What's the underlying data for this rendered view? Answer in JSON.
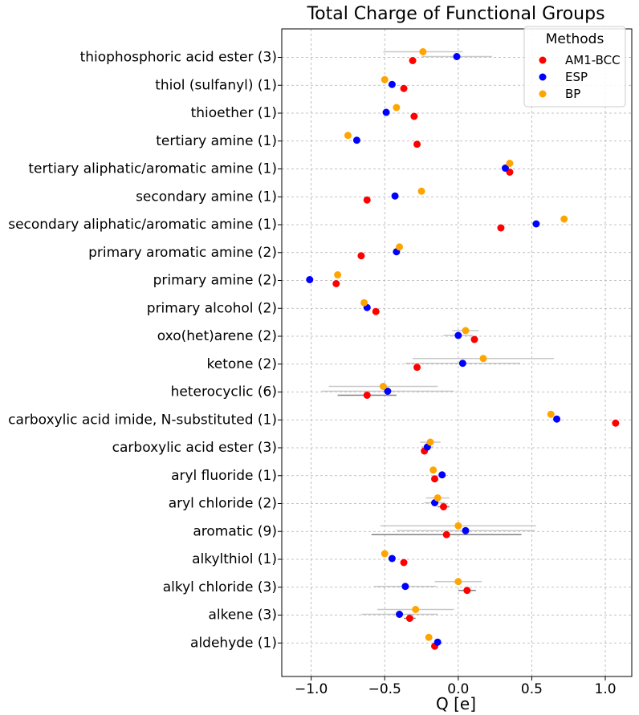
{
  "chart_data": {
    "type": "scatter",
    "title": "Total Charge of Functional Groups",
    "xlabel": "Q [e]",
    "ylabel": "",
    "xlim": [
      -1.2,
      1.18
    ],
    "xticks": [
      -1.0,
      -0.5,
      0.0,
      0.5,
      1.0
    ],
    "xtick_labels": [
      "−1.0",
      "−0.5",
      "0.0",
      "0.5",
      "1.0"
    ],
    "grid": true,
    "legend": {
      "title": "Methods",
      "position": "top-right"
    },
    "categories": [
      "thiophosphoric acid ester (3)",
      "thiol (sulfanyl) (1)",
      "thioether (1)",
      "tertiary amine (1)",
      "tertiary aliphatic/aromatic amine (1)",
      "secondary amine (1)",
      "secondary aliphatic/aromatic amine (1)",
      "primary aromatic amine (2)",
      "primary amine (2)",
      "primary alcohol (2)",
      "oxo(het)arene (2)",
      "ketone (2)",
      "heterocyclic (6)",
      "carboxylic acid imide, N-substituted (1)",
      "carboxylic acid ester (3)",
      "aryl fluoride (1)",
      "aryl chloride (2)",
      "aromatic (9)",
      "alkylthiol (1)",
      "alkyl chloride (3)",
      "alkene (3)",
      "aldehyde (1)"
    ],
    "series": [
      {
        "name": "AM1-BCC",
        "color": "#ff0000",
        "values": [
          -0.31,
          -0.37,
          -0.3,
          -0.28,
          0.35,
          -0.62,
          0.29,
          -0.66,
          -0.83,
          -0.56,
          0.11,
          -0.28,
          -0.62,
          1.07,
          -0.23,
          -0.16,
          -0.1,
          -0.08,
          -0.37,
          0.06,
          -0.33,
          -0.16
        ],
        "err": [
          null,
          null,
          null,
          null,
          null,
          null,
          null,
          null,
          null,
          null,
          null,
          null,
          0.2,
          null,
          null,
          null,
          0.04,
          0.51,
          null,
          0.06,
          0.04,
          null
        ]
      },
      {
        "name": "ESP",
        "color": "#0000ff",
        "values": [
          -0.01,
          -0.45,
          -0.49,
          -0.69,
          0.32,
          -0.43,
          0.53,
          -0.42,
          -1.01,
          -0.62,
          0.0,
          0.03,
          -0.48,
          0.67,
          -0.21,
          -0.11,
          -0.16,
          0.05,
          -0.45,
          -0.36,
          -0.4,
          -0.14
        ],
        "err": [
          0.24,
          null,
          null,
          null,
          null,
          null,
          null,
          null,
          null,
          null,
          0.1,
          0.39,
          0.45,
          null,
          0.04,
          null,
          0.07,
          0.47,
          null,
          0.21,
          0.26,
          null
        ]
      },
      {
        "name": "BP",
        "color": "#ffa500",
        "values": [
          -0.24,
          -0.5,
          -0.42,
          -0.75,
          0.35,
          -0.25,
          0.72,
          -0.4,
          -0.82,
          -0.64,
          0.05,
          0.17,
          -0.51,
          0.63,
          -0.19,
          -0.17,
          -0.14,
          0.0,
          -0.5,
          0.0,
          -0.29,
          -0.2
        ],
        "err": [
          0.27,
          null,
          null,
          null,
          null,
          null,
          null,
          null,
          null,
          null,
          0.09,
          0.48,
          0.37,
          null,
          0.07,
          null,
          0.08,
          0.53,
          null,
          0.16,
          0.26,
          null
        ]
      }
    ]
  }
}
